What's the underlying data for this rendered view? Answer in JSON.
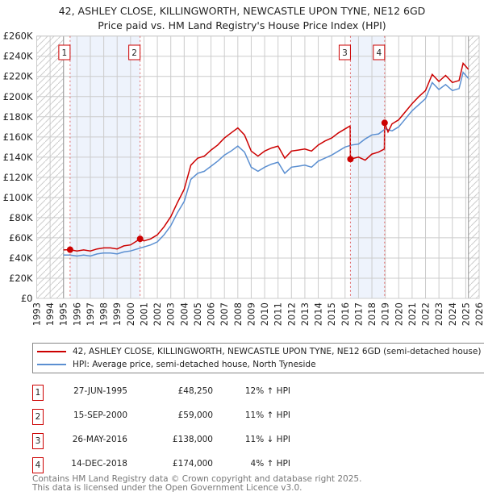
{
  "title": "42, ASHLEY CLOSE, KILLINGWORTH, NEWCASTLE UPON TYNE, NE12 6GD",
  "subtitle": "Price paid vs. HM Land Registry's House Price Index (HPI)",
  "chart_data": {
    "type": "line",
    "title": "42, ASHLEY CLOSE, KILLINGWORTH, NEWCASTLE UPON TYNE, NE12 6GD — Price paid vs. HM Land Registry's House Price Index (HPI)",
    "xlim": [
      1993,
      2026
    ],
    "ylim": [
      0,
      260000
    ],
    "x_ticks": [
      "1993",
      "1994",
      "1995",
      "1996",
      "1997",
      "1998",
      "1999",
      "2000",
      "2001",
      "2002",
      "2003",
      "2004",
      "2005",
      "2006",
      "2007",
      "2008",
      "2009",
      "2010",
      "2011",
      "2012",
      "2013",
      "2014",
      "2015",
      "2016",
      "2017",
      "2018",
      "2019",
      "2020",
      "2021",
      "2022",
      "2023",
      "2024",
      "2025",
      "2026"
    ],
    "y_ticks": [
      "£0",
      "£20K",
      "£40K",
      "£60K",
      "£80K",
      "£100K",
      "£120K",
      "£140K",
      "£160K",
      "£180K",
      "£200K",
      "£220K",
      "£240K",
      "£260K"
    ],
    "grid": true,
    "series": [
      {
        "name": "42, ASHLEY CLOSE, KILLINGWORTH, NEWCASTLE UPON TYNE, NE12 6GD (semi-detached house)",
        "color": "#cc0000",
        "points": [
          [
            1995.0,
            48
          ],
          [
            1995.49,
            48.25
          ],
          [
            1996.0,
            47
          ],
          [
            1996.5,
            48
          ],
          [
            1997.0,
            47
          ],
          [
            1997.5,
            49
          ],
          [
            1998.0,
            50
          ],
          [
            1998.5,
            50
          ],
          [
            1999.0,
            49
          ],
          [
            1999.5,
            52
          ],
          [
            2000.0,
            53
          ],
          [
            2000.71,
            59
          ],
          [
            2001.0,
            57
          ],
          [
            2001.5,
            59
          ],
          [
            2002.0,
            63
          ],
          [
            2002.5,
            71
          ],
          [
            2003.0,
            81
          ],
          [
            2003.5,
            95
          ],
          [
            2004.0,
            108
          ],
          [
            2004.5,
            132
          ],
          [
            2005.0,
            139
          ],
          [
            2005.5,
            141
          ],
          [
            2006.0,
            147
          ],
          [
            2006.5,
            152
          ],
          [
            2007.0,
            159
          ],
          [
            2007.5,
            164
          ],
          [
            2008.0,
            169
          ],
          [
            2008.5,
            162
          ],
          [
            2009.0,
            146
          ],
          [
            2009.5,
            141
          ],
          [
            2010.0,
            146
          ],
          [
            2010.5,
            149
          ],
          [
            2011.0,
            151
          ],
          [
            2011.5,
            139
          ],
          [
            2012.0,
            146
          ],
          [
            2012.5,
            147
          ],
          [
            2013.0,
            148
          ],
          [
            2013.5,
            146
          ],
          [
            2014.0,
            152
          ],
          [
            2014.5,
            156
          ],
          [
            2015.0,
            159
          ],
          [
            2015.5,
            164
          ],
          [
            2016.0,
            168
          ],
          [
            2016.38,
            171
          ],
          [
            2016.4,
            138
          ],
          [
            2017.0,
            140
          ],
          [
            2017.5,
            137
          ],
          [
            2018.0,
            143
          ],
          [
            2018.5,
            145
          ],
          [
            2018.93,
            148
          ],
          [
            2018.95,
            174
          ],
          [
            2019.2,
            165
          ],
          [
            2019.5,
            173
          ],
          [
            2020.0,
            177
          ],
          [
            2020.5,
            185
          ],
          [
            2021.0,
            193
          ],
          [
            2021.5,
            200
          ],
          [
            2022.0,
            206
          ],
          [
            2022.5,
            222
          ],
          [
            2023.0,
            215
          ],
          [
            2023.5,
            221
          ],
          [
            2024.0,
            214
          ],
          [
            2024.5,
            216
          ],
          [
            2024.8,
            233
          ],
          [
            2025.2,
            227
          ]
        ]
      },
      {
        "name": "HPI: Average price, semi-detached house, North Tyneside",
        "color": "#5b8fd1",
        "points": [
          [
            1995.0,
            43
          ],
          [
            1995.5,
            43
          ],
          [
            1996.0,
            42
          ],
          [
            1996.5,
            43
          ],
          [
            1997.0,
            42
          ],
          [
            1997.5,
            44
          ],
          [
            1998.0,
            45
          ],
          [
            1998.5,
            45
          ],
          [
            1999.0,
            44
          ],
          [
            1999.5,
            46
          ],
          [
            2000.0,
            47
          ],
          [
            2000.5,
            49
          ],
          [
            2001.0,
            51
          ],
          [
            2001.5,
            53
          ],
          [
            2002.0,
            56
          ],
          [
            2002.5,
            63
          ],
          [
            2003.0,
            72
          ],
          [
            2003.5,
            85
          ],
          [
            2004.0,
            96
          ],
          [
            2004.5,
            118
          ],
          [
            2005.0,
            124
          ],
          [
            2005.5,
            126
          ],
          [
            2006.0,
            131
          ],
          [
            2006.5,
            136
          ],
          [
            2007.0,
            142
          ],
          [
            2007.5,
            146
          ],
          [
            2008.0,
            151
          ],
          [
            2008.5,
            145
          ],
          [
            2009.0,
            130
          ],
          [
            2009.5,
            126
          ],
          [
            2010.0,
            130
          ],
          [
            2010.5,
            133
          ],
          [
            2011.0,
            135
          ],
          [
            2011.5,
            124
          ],
          [
            2012.0,
            130
          ],
          [
            2012.5,
            131
          ],
          [
            2013.0,
            132
          ],
          [
            2013.5,
            130
          ],
          [
            2014.0,
            136
          ],
          [
            2014.5,
            139
          ],
          [
            2015.0,
            142
          ],
          [
            2015.5,
            146
          ],
          [
            2016.0,
            150
          ],
          [
            2016.5,
            152
          ],
          [
            2017.0,
            153
          ],
          [
            2017.5,
            158
          ],
          [
            2018.0,
            162
          ],
          [
            2018.5,
            163
          ],
          [
            2019.0,
            168
          ],
          [
            2019.5,
            166
          ],
          [
            2020.0,
            170
          ],
          [
            2020.5,
            178
          ],
          [
            2021.0,
            186
          ],
          [
            2021.5,
            192
          ],
          [
            2022.0,
            198
          ],
          [
            2022.5,
            214
          ],
          [
            2023.0,
            207
          ],
          [
            2023.5,
            212
          ],
          [
            2024.0,
            206
          ],
          [
            2024.5,
            208
          ],
          [
            2024.8,
            224
          ],
          [
            2025.2,
            218
          ]
        ]
      }
    ],
    "y_units": "thousands GBP",
    "sales": [
      {
        "label": "1",
        "x": 1995.49,
        "y": 48.25
      },
      {
        "label": "2",
        "x": 2000.71,
        "y": 59
      },
      {
        "label": "3",
        "x": 2016.4,
        "y": 138
      },
      {
        "label": "4",
        "x": 2018.95,
        "y": 174
      }
    ],
    "data_start": 1995.0,
    "data_end": 2025.2
  },
  "legend": {
    "property": "42, ASHLEY CLOSE, KILLINGWORTH, NEWCASTLE UPON TYNE, NE12 6GD (semi-detached house)",
    "hpi": "HPI: Average price, semi-detached house, North Tyneside"
  },
  "transactions": [
    {
      "num": "1",
      "date": "27-JUN-1995",
      "price": "£48,250",
      "hpi": "12% ↑ HPI"
    },
    {
      "num": "2",
      "date": "15-SEP-2000",
      "price": "£59,000",
      "hpi": "11% ↑ HPI"
    },
    {
      "num": "3",
      "date": "26-MAY-2016",
      "price": "£138,000",
      "hpi": "11% ↓ HPI"
    },
    {
      "num": "4",
      "date": "14-DEC-2018",
      "price": "£174,000",
      "hpi": "4% ↑ HPI"
    }
  ],
  "footer": {
    "line1": "Contains HM Land Registry data © Crown copyright and database right 2025.",
    "line2": "This data is licensed under the Open Government Licence v3.0."
  }
}
